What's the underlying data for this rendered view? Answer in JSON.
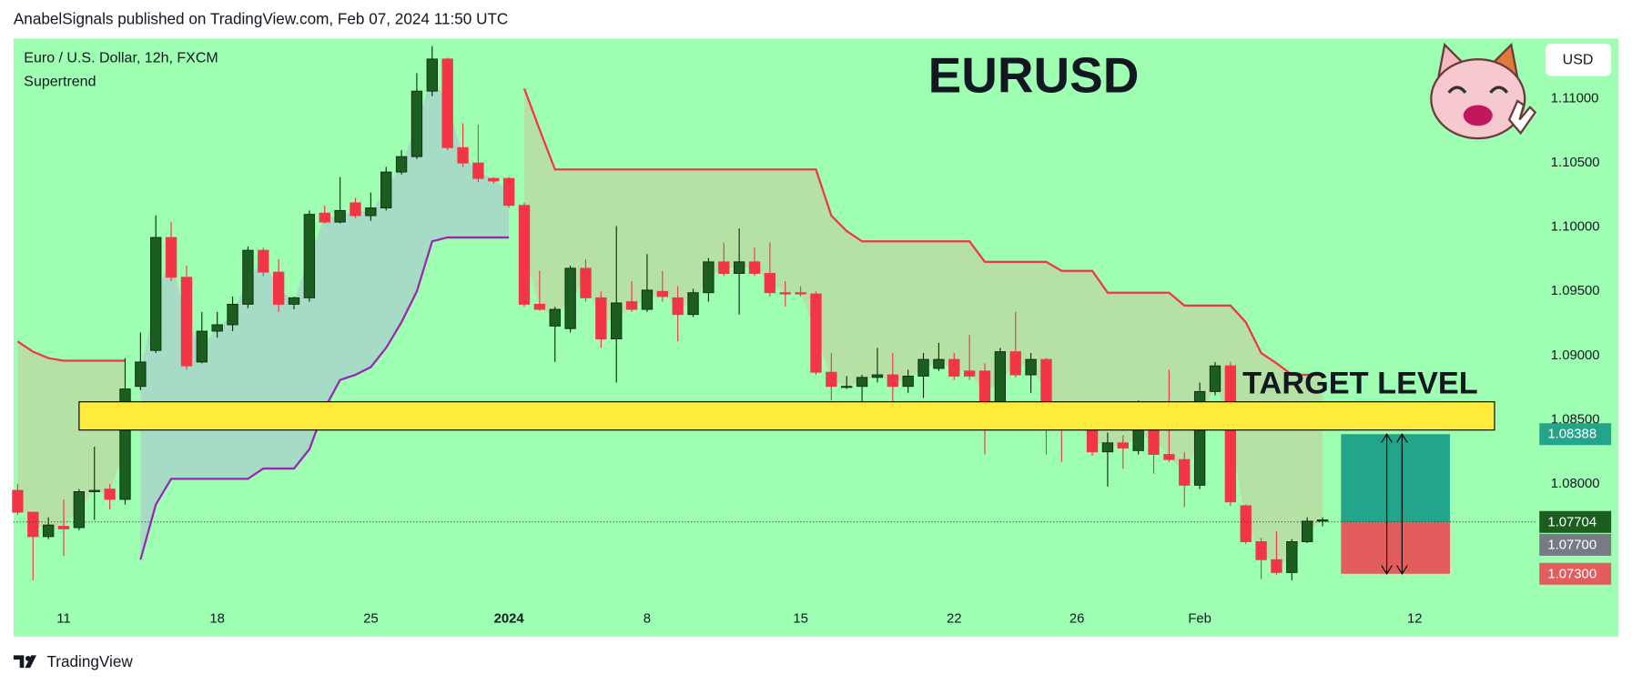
{
  "chart_data": {
    "type": "candlestick",
    "header": "AnabelSignals published on TradingView.com, Feb 07, 2024 11:50 UTC",
    "legend_title": "Euro / U.S. Dollar, 12h, FXCM",
    "title": "EURUSD",
    "currency": "USD",
    "brand": "TradingView",
    "background": "#9effb3",
    "up_color": "#1b5e20",
    "down_color": "#f23645",
    "grid": false,
    "xlim": [
      -0.27,
      98.85
    ],
    "ylim": [
      1.0707,
      1.1147
    ],
    "yticks": [
      {
        "value": 1.11,
        "label": "1.11000"
      },
      {
        "value": 1.105,
        "label": "1.10500"
      },
      {
        "value": 1.1,
        "label": "1.10000"
      },
      {
        "value": 1.095,
        "label": "1.09500"
      },
      {
        "value": 1.09,
        "label": "1.09000"
      },
      {
        "value": 1.085,
        "label": "1.08500"
      },
      {
        "value": 1.08,
        "label": "1.08000"
      }
    ],
    "xticks": [
      {
        "value": 3,
        "label": "11"
      },
      {
        "value": 13,
        "label": "18"
      },
      {
        "value": 23,
        "label": "25"
      },
      {
        "value": 32,
        "label": "2024"
      },
      {
        "value": 41,
        "label": "8"
      },
      {
        "value": 51,
        "label": "15"
      },
      {
        "value": 61,
        "label": "22"
      },
      {
        "value": 69,
        "label": "26"
      },
      {
        "value": 77,
        "label": "Feb"
      },
      {
        "value": 91,
        "label": "12"
      }
    ],
    "candles": {
      "open": [
        1.0795,
        1.0778,
        1.0759,
        1.0767,
        1.0766,
        1.0794,
        1.0796,
        1.0788,
        1.0876,
        1.0904,
        1.0992,
        1.0961,
        1.0895,
        1.0919,
        1.0924,
        1.094,
        1.0982,
        1.0965,
        1.094,
        1.0945,
        1.1011,
        1.1004,
        1.1019,
        1.1009,
        1.1015,
        1.1043,
        1.1055,
        1.1106,
        1.1131,
        1.1062,
        1.105,
        1.1038,
        1.1038,
        1.1017,
        1.094,
        1.0923,
        1.0921,
        1.0968,
        1.0945,
        1.0913,
        1.0942,
        1.0936,
        1.095,
        1.0945,
        1.0932,
        1.0949,
        1.0973,
        1.0964,
        1.0973,
        1.0964,
        1.0949,
        1.0949,
        1.0948,
        1.0887,
        1.0876,
        1.0876,
        1.0883,
        1.0885,
        1.0876,
        1.0884,
        1.089,
        1.0897,
        1.0888,
        1.0888,
        1.0855,
        1.0903,
        1.0885,
        1.0897,
        1.0847,
        1.0845,
        1.0844,
        1.0825,
        1.0832,
        1.0826,
        1.0848,
        1.0823,
        1.0819,
        1.0799,
        1.0872,
        1.0892,
        1.0783,
        1.0755,
        1.0741,
        1.0731,
        1.0755,
        1.0771
      ],
      "high": [
        1.08,
        1.0778,
        1.0774,
        1.0788,
        1.0796,
        1.0829,
        1.08,
        1.0898,
        1.0918,
        1.1009,
        1.1004,
        1.097,
        1.0934,
        1.0934,
        1.0946,
        1.0985,
        1.0984,
        1.0975,
        1.0946,
        1.1013,
        1.1017,
        1.1039,
        1.1023,
        1.1027,
        1.1047,
        1.106,
        1.112,
        1.1141,
        1.1132,
        1.1081,
        1.108,
        1.1039,
        1.1039,
        1.1019,
        1.0966,
        1.0938,
        1.097,
        1.0975,
        1.095,
        1.1001,
        1.0958,
        1.0979,
        1.0966,
        1.0954,
        1.0952,
        1.0976,
        1.0988,
        1.0999,
        1.0984,
        1.0988,
        1.0958,
        1.0954,
        1.095,
        1.0902,
        1.0884,
        1.0885,
        1.0906,
        1.0902,
        1.0889,
        1.0902,
        1.091,
        1.0902,
        1.0916,
        1.0894,
        1.0906,
        1.0934,
        1.0902,
        1.0898,
        1.0855,
        1.0861,
        1.0849,
        1.084,
        1.0838,
        1.0865,
        1.0857,
        1.0889,
        1.0825,
        1.0879,
        1.0895,
        1.0895,
        1.0784,
        1.0758,
        1.0763,
        1.0757,
        1.0774,
        1.0774
      ],
      "low": [
        1.0776,
        1.0725,
        1.0757,
        1.0744,
        1.0764,
        1.0772,
        1.078,
        1.0784,
        1.0873,
        1.0902,
        1.0958,
        1.0889,
        1.0894,
        1.0914,
        1.0919,
        1.0937,
        1.0962,
        1.0934,
        1.0936,
        1.0942,
        1.1003,
        1.1003,
        1.1007,
        1.1005,
        1.1013,
        1.1041,
        1.1053,
        1.1102,
        1.106,
        1.1047,
        1.1035,
        1.1034,
        1.1015,
        1.0938,
        1.0935,
        1.0895,
        1.0918,
        1.0942,
        1.0906,
        1.0879,
        1.0934,
        1.0934,
        1.0942,
        1.0911,
        1.093,
        1.0942,
        1.0962,
        1.0932,
        1.0962,
        1.0946,
        1.0938,
        1.0946,
        1.0885,
        1.0865,
        1.0874,
        1.0849,
        1.0879,
        1.0849,
        1.0871,
        1.0867,
        1.0888,
        1.0881,
        1.0881,
        1.0823,
        1.0847,
        1.0883,
        1.0871,
        1.0823,
        1.0817,
        1.0842,
        1.0822,
        1.0798,
        1.0812,
        1.0823,
        1.0808,
        1.0817,
        1.0782,
        1.0796,
        1.0869,
        1.0783,
        1.0753,
        1.0726,
        1.0729,
        1.0725,
        1.0754,
        1.0767
      ],
      "close": [
        1.0778,
        1.0759,
        1.0768,
        1.0765,
        1.0794,
        1.0795,
        1.0788,
        1.0874,
        1.0895,
        1.0992,
        1.0961,
        1.0892,
        1.0919,
        1.0924,
        1.094,
        1.0982,
        1.0965,
        1.094,
        1.0945,
        1.101,
        1.1004,
        1.1013,
        1.1009,
        1.1015,
        1.1043,
        1.1055,
        1.1106,
        1.1131,
        1.1062,
        1.105,
        1.1038,
        1.1036,
        1.1017,
        1.094,
        1.0936,
        1.0936,
        1.0968,
        1.0945,
        1.0913,
        1.0941,
        1.0936,
        1.0951,
        1.0946,
        1.0932,
        1.0949,
        1.0973,
        1.0964,
        1.0973,
        1.0964,
        1.0949,
        1.0948,
        1.0948,
        1.0887,
        1.0876,
        1.0876,
        1.0883,
        1.0885,
        1.0876,
        1.0884,
        1.0897,
        1.0897,
        1.0884,
        1.0884,
        1.0855,
        1.0903,
        1.0885,
        1.0897,
        1.0847,
        1.0844,
        1.0853,
        1.0825,
        1.0832,
        1.0828,
        1.0847,
        1.0823,
        1.0819,
        1.0799,
        1.0872,
        1.0892,
        1.0786,
        1.0755,
        1.0741,
        1.0731,
        1.0755,
        1.0771,
        1.0772
      ]
    },
    "supertrend": {
      "name": "Supertrend",
      "upper": {
        "color": "#f23645",
        "fill_color": "#b6e1a4",
        "values": [
          1.0911,
          1.0903,
          1.0898,
          1.0896,
          1.0896,
          1.0896,
          1.0896,
          1.0896,
          null,
          null,
          null,
          null,
          null,
          null,
          null,
          null,
          null,
          null,
          null,
          null,
          null,
          null,
          null,
          null,
          null,
          null,
          null,
          null,
          null,
          null,
          null,
          null,
          null,
          1.1108,
          1.1076,
          1.1045,
          1.1045,
          1.1045,
          1.1045,
          1.1045,
          1.1045,
          1.1045,
          1.1045,
          1.1045,
          1.1045,
          1.1045,
          1.1045,
          1.1045,
          1.1045,
          1.1045,
          1.1045,
          1.1045,
          1.1045,
          1.1009,
          1.0997,
          1.0989,
          1.0989,
          1.0989,
          1.0989,
          1.0989,
          1.0989,
          1.0989,
          1.0989,
          1.0973,
          1.0973,
          1.0973,
          1.0973,
          1.0973,
          1.0966,
          1.0966,
          1.0966,
          1.0949,
          1.0949,
          1.0949,
          1.0949,
          1.0949,
          1.0939,
          1.0939,
          1.0939,
          1.0939,
          1.0926,
          1.0902,
          1.0894,
          1.0885,
          1.0885,
          1.0885
        ]
      },
      "lower": {
        "color": "#9c27b0",
        "fill_color": "#a6dcc6",
        "values": [
          null,
          null,
          null,
          null,
          null,
          null,
          null,
          null,
          1.0741,
          1.0784,
          1.0804,
          1.0804,
          1.0804,
          1.0804,
          1.0804,
          1.0804,
          1.0812,
          1.0812,
          1.0812,
          1.0827,
          1.0859,
          1.0881,
          1.0885,
          1.0891,
          1.0906,
          1.0926,
          1.095,
          1.0989,
          1.0992,
          1.0992,
          1.0992,
          1.0992,
          1.0992,
          null,
          null,
          null,
          null,
          null,
          null,
          null,
          null,
          null,
          null,
          null,
          null,
          null,
          null,
          null,
          null,
          null,
          null,
          null,
          null,
          null,
          null,
          null,
          null,
          null,
          null,
          null,
          null,
          null,
          null,
          null,
          null,
          null,
          null,
          null,
          null,
          null,
          null,
          null,
          null,
          null,
          null,
          null,
          null,
          null,
          null,
          null,
          null,
          null,
          null,
          null,
          null,
          null
        ]
      }
    },
    "zone": {
      "label": "TARGET LEVEL",
      "low": 1.0842,
      "high": 1.0864,
      "x_start": 4.0,
      "x_end": 96.2,
      "color": "#ffeb3b"
    },
    "position": {
      "target": 1.08388,
      "entry": {
        "value": 1.077,
        "label": "1.07700"
      },
      "stop": {
        "value": 1.073,
        "label": "1.07300"
      },
      "x_start": 86.2,
      "x_end": 93.3,
      "profit_color": "#22a58b",
      "loss_color": "#e35d5d",
      "entry_color": "#787b86"
    },
    "last_price": 1.07704,
    "last_price_color": "#1b5e20"
  }
}
